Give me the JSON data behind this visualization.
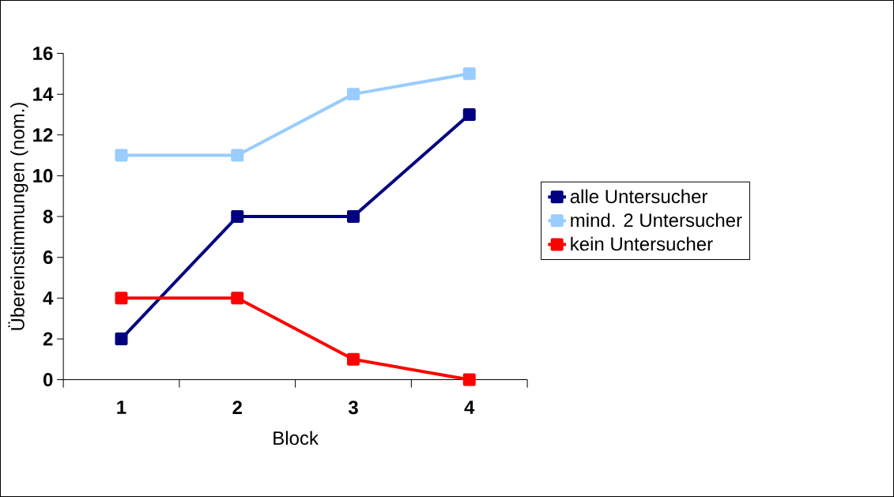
{
  "chart_data": {
    "type": "line",
    "xlabel": "Block",
    "ylabel": "Übereinstimmungen (nom.)",
    "categories": [
      "1",
      "2",
      "3",
      "4"
    ],
    "series": [
      {
        "name": "alle Untersucher",
        "color": "#000080",
        "values": [
          2,
          8,
          8,
          13
        ]
      },
      {
        "name": "mind. 2 Untersucher",
        "color": "#99ccff",
        "values": [
          11,
          11,
          14,
          15
        ]
      },
      {
        "name": "kein Untersucher",
        "color": "#ff0000",
        "values": [
          4,
          4,
          1,
          0
        ]
      }
    ],
    "ylim": [
      0,
      16
    ],
    "yticks": [
      0,
      2,
      4,
      6,
      8,
      10,
      12,
      14,
      16
    ],
    "grid": false,
    "legend": "right",
    "marker": "square",
    "line_style": "solid"
  }
}
